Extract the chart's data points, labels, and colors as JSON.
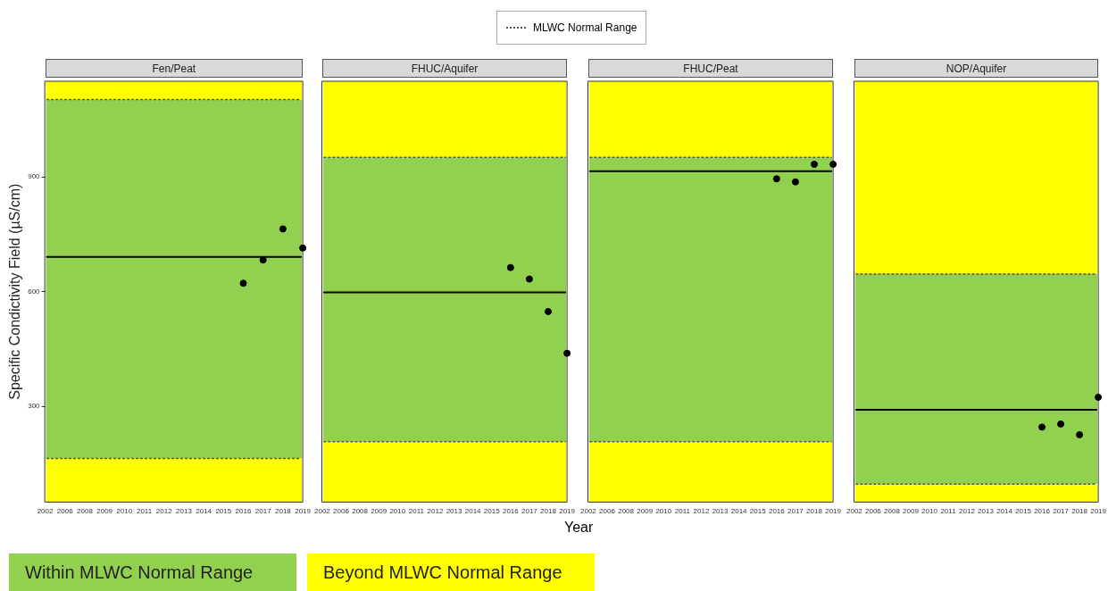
{
  "chart_data": [
    {
      "type": "scatter",
      "title": "Fen/Peat",
      "ylabel": "Specific Condictivity Field (µS/cm)",
      "categories": [
        "2002",
        "2006",
        "2008",
        "2009",
        "2010",
        "2011",
        "2012",
        "2013",
        "2014",
        "2015",
        "2016",
        "2017",
        "2018",
        "2019"
      ],
      "series": [
        {
          "color": "#000000",
          "values": [
            null,
            null,
            null,
            null,
            null,
            null,
            null,
            null,
            null,
            null,
            622,
            683,
            764,
            714
          ]
        }
      ],
      "marker": "circle",
      "ylim": [
        50,
        1150
      ],
      "yticks": [
        300,
        600,
        900
      ],
      "grid": false,
      "legend": "bottom",
      "bands": [
        {
          "axis": "y",
          "from": 164,
          "to": 1102,
          "color": "#92d050",
          "label": "Within MLWC Normal Range"
        },
        {
          "axis": "y",
          "from": 1102,
          "to": 1150,
          "color": "#ffff00",
          "label": "Beyond MLWC Normal Range"
        },
        {
          "axis": "y",
          "from": 50,
          "to": 164,
          "color": "#ffff00"
        }
      ],
      "ref_lines": [
        {
          "axis": "y",
          "value": 1102,
          "color": "#555555",
          "line_style": "dotted"
        },
        {
          "axis": "y",
          "value": 164,
          "color": "#555555",
          "line_style": "dotted"
        },
        {
          "axis": "y",
          "value": 691,
          "color": "#000000",
          "line_style": "solid"
        }
      ]
    },
    {
      "type": "scatter",
      "title": "FHUC/Aquifer",
      "xlabel": "Year",
      "categories": [
        "2002",
        "2006",
        "2008",
        "2009",
        "2010",
        "2011",
        "2012",
        "2013",
        "2014",
        "2015",
        "2016",
        "2017",
        "2018",
        "2019"
      ],
      "series": [
        {
          "color": "#000000",
          "values": [
            null,
            null,
            null,
            null,
            null,
            null,
            null,
            null,
            null,
            null,
            663,
            633,
            548,
            439
          ]
        }
      ],
      "marker": "circle",
      "ylim": [
        50,
        1150
      ],
      "yticks": [
        300,
        600,
        900
      ],
      "grid": false,
      "tick_labels": "x",
      "legend": "top",
      "bands": [
        {
          "axis": "y",
          "from": 208,
          "to": 951,
          "color": "#92d050"
        },
        {
          "axis": "y",
          "from": 951,
          "to": 1150,
          "color": "#ffff00"
        },
        {
          "axis": "y",
          "from": 50,
          "to": 208,
          "color": "#ffff00"
        }
      ],
      "ref_lines": [
        {
          "axis": "y",
          "value": 951,
          "color": "#555555",
          "line_style": "dotted",
          "label": "MLWC Normal Range"
        },
        {
          "axis": "y",
          "value": 208,
          "color": "#555555",
          "line_style": "dotted"
        },
        {
          "axis": "y",
          "value": 598,
          "color": "#000000",
          "line_style": "solid"
        }
      ]
    },
    {
      "type": "scatter",
      "title": "FHUC/Peat",
      "categories": [
        "2002",
        "2006",
        "2008",
        "2009",
        "2010",
        "2011",
        "2012",
        "2013",
        "2014",
        "2015",
        "2016",
        "2017",
        "2018",
        "2019"
      ],
      "series": [
        {
          "color": "#000000",
          "values": [
            null,
            null,
            null,
            null,
            null,
            null,
            null,
            null,
            null,
            null,
            895,
            887,
            933,
            933
          ]
        }
      ],
      "marker": "circle",
      "ylim": [
        50,
        1150
      ],
      "yticks": [
        300,
        600,
        900
      ],
      "grid": false,
      "tick_labels": "x",
      "bands": [
        {
          "axis": "y",
          "from": 208,
          "to": 951,
          "color": "#92d050"
        },
        {
          "axis": "y",
          "from": 951,
          "to": 1150,
          "color": "#ffff00"
        },
        {
          "axis": "y",
          "from": 50,
          "to": 208,
          "color": "#ffff00"
        }
      ],
      "ref_lines": [
        {
          "axis": "y",
          "value": 951,
          "color": "#555555",
          "line_style": "dotted"
        },
        {
          "axis": "y",
          "value": 208,
          "color": "#555555",
          "line_style": "dotted"
        },
        {
          "axis": "y",
          "value": 915,
          "color": "#000000",
          "line_style": "solid"
        }
      ]
    },
    {
      "type": "scatter",
      "title": "NOP/Aquifer",
      "categories": [
        "2002",
        "2006",
        "2008",
        "2009",
        "2010",
        "2011",
        "2012",
        "2013",
        "2014",
        "2015",
        "2016",
        "2017",
        "2018",
        "2019"
      ],
      "series": [
        {
          "color": "#000000",
          "values": [
            null,
            null,
            null,
            null,
            null,
            null,
            null,
            null,
            null,
            null,
            246,
            254,
            226,
            324
          ]
        }
      ],
      "marker": "circle",
      "ylim": [
        50,
        1150
      ],
      "yticks": [
        300,
        600,
        900
      ],
      "grid": false,
      "tick_labels": "x",
      "bands": [
        {
          "axis": "y",
          "from": 97,
          "to": 646,
          "color": "#92d050"
        },
        {
          "axis": "y",
          "from": 646,
          "to": 1150,
          "color": "#ffff00"
        },
        {
          "axis": "y",
          "from": 50,
          "to": 97,
          "color": "#ffff00"
        }
      ],
      "ref_lines": [
        {
          "axis": "y",
          "value": 646,
          "color": "#555555",
          "line_style": "dotted"
        },
        {
          "axis": "y",
          "value": 97,
          "color": "#555555",
          "line_style": "dotted"
        },
        {
          "axis": "y",
          "value": 291,
          "color": "#000000",
          "line_style": "solid"
        }
      ]
    }
  ]
}
